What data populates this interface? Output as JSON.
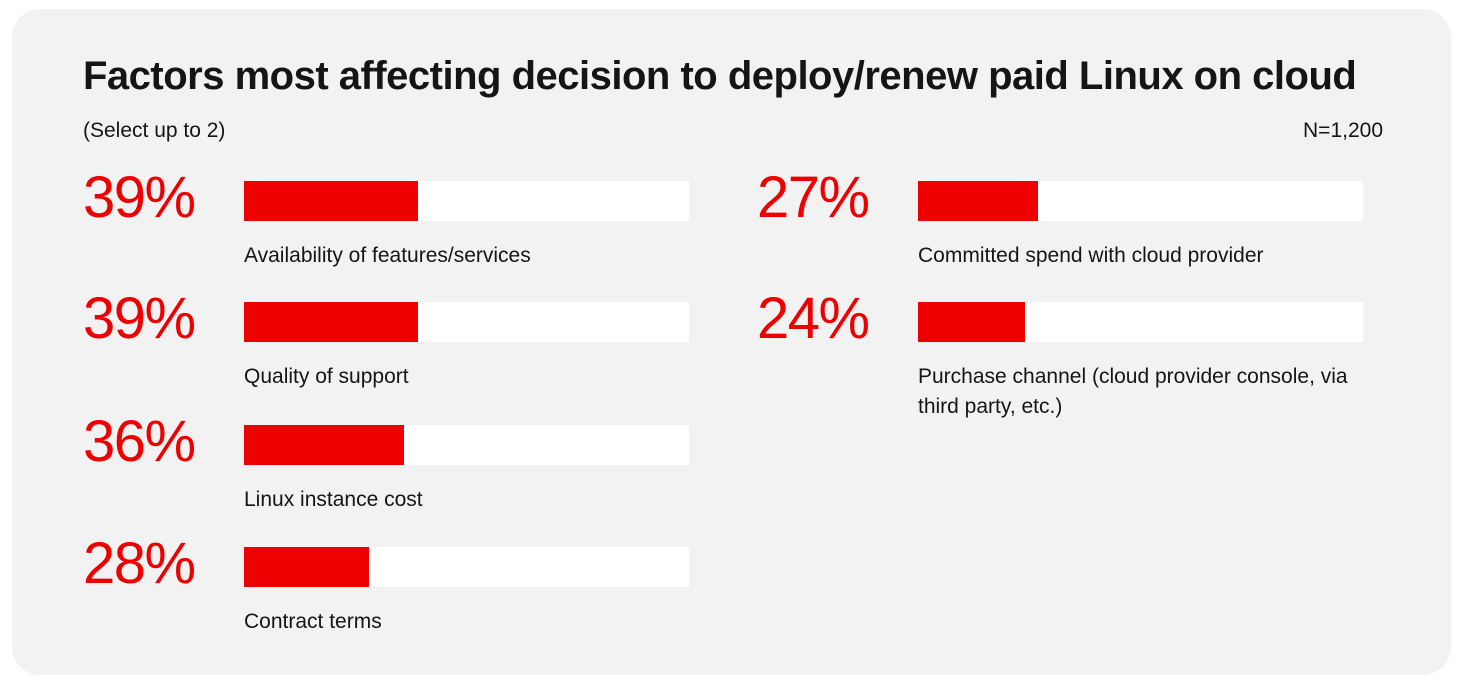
{
  "colors": {
    "accent": "#ee0000",
    "background": "#f2f2f2",
    "track": "#ffffff",
    "text": "#151515"
  },
  "header": {
    "title": "Factors most affecting decision to deploy/renew paid Linux on cloud",
    "subtitle": "(Select up to 2)",
    "sample_size": "N=1,200"
  },
  "chart_data": {
    "type": "bar",
    "orientation": "horizontal",
    "title": "Factors most affecting decision to deploy/renew paid Linux on cloud",
    "xlim": [
      0,
      100
    ],
    "unit": "%",
    "categories": [
      "Availability of features/services",
      "Quality of support",
      "Linux instance cost",
      "Contract terms",
      "Committed spend with cloud provider",
      "Purchase channel (cloud provider console, via third party, etc.)"
    ],
    "values": [
      39,
      39,
      36,
      28,
      27,
      24
    ],
    "value_labels": [
      "39%",
      "39%",
      "36%",
      "28%",
      "27%",
      "24%"
    ]
  }
}
